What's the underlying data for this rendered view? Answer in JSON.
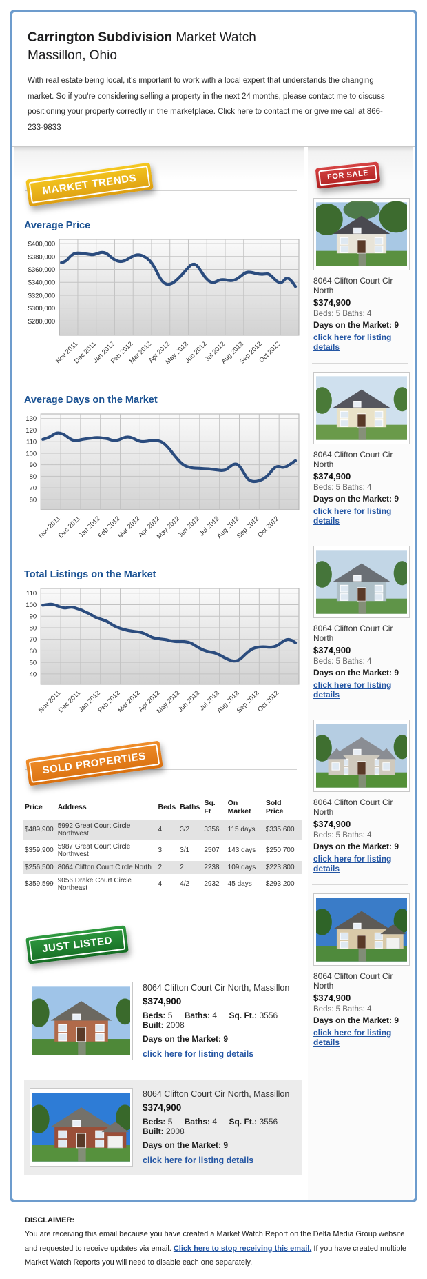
{
  "header": {
    "title_bold": "Carrington Subdivision",
    "title_rest": " Market Watch",
    "subtitle": "Massillon, Ohio",
    "intro": "With real estate being local, it's important to work with a local expert that understands the changing market. So if you're considering selling a property in the next 24 months, please contact me to discuss positioning your property correctly in the marketplace. Click here to contact me or give me call at 866-233-9833"
  },
  "badges": {
    "market_trends": "MARKET TRENDS",
    "for_sale": "FOR SALE",
    "sold_properties": "SOLD PROPERTIES",
    "just_listed": "JUST LISTED"
  },
  "colors": {
    "line": "#2b4c7e",
    "heading_blue": "#1b5293",
    "link_blue": "#2456a4",
    "border_blue": "#6d9ccd",
    "row_shade": "#e3e3e3"
  },
  "chart_data": [
    {
      "type": "line",
      "title": "Average Price",
      "xlabel": "",
      "ylabel": "",
      "legend": "none",
      "grid": true,
      "categories": [
        "Nov 2011",
        "Dec 2011",
        "Jan 2012",
        "Feb 2012",
        "Mar 2012",
        "Apr 2012",
        "May 2012",
        "Jun 2012",
        "Jul 2012",
        "Aug 2012",
        "Sep 2012",
        "Oct 2012"
      ],
      "yticks": [
        400000,
        380000,
        360000,
        340000,
        320000,
        300000,
        280000
      ],
      "ytick_labels": [
        "$400,000",
        "$380,000",
        "$360,000",
        "$340,000",
        "$320,000",
        "$300,000",
        "$280,000"
      ],
      "ylim": [
        258000,
        406500
      ],
      "values": [
        370500,
        372000,
        381000,
        385000,
        385500,
        384500,
        383500,
        382500,
        384500,
        387000,
        385000,
        379000,
        374000,
        372000,
        373000,
        377000,
        381000,
        383000,
        381500,
        377500,
        371000,
        359000,
        345000,
        337500,
        336500,
        340000,
        346000,
        353500,
        361500,
        368500,
        367500,
        357500,
        347000,
        340500,
        339500,
        343500,
        344500,
        343000,
        342500,
        345000,
        350500,
        355500,
        356000,
        354000,
        352500,
        352500,
        353500,
        347500,
        340500,
        339000,
        348000,
        343500,
        333500
      ]
    },
    {
      "type": "line",
      "title": "Average Days on the Market",
      "xlabel": "",
      "ylabel": "",
      "legend": "none",
      "grid": true,
      "categories": [
        "Nov 2011",
        "Dec 2011",
        "Jan 2012",
        "Feb 2012",
        "Mar 2012",
        "Apr 2012",
        "May 2012",
        "Jun 2012",
        "Jul 2012",
        "Aug 2012",
        "Sep 2012",
        "Oct 2012"
      ],
      "yticks": [
        130,
        120,
        110,
        100,
        90,
        80,
        70,
        60
      ],
      "ytick_labels": [
        "130",
        "120",
        "110",
        "100",
        "90",
        "80",
        "70",
        "60"
      ],
      "ylim": [
        51,
        134
      ],
      "values": [
        112,
        113,
        115,
        117.5,
        117.5,
        116,
        113,
        111,
        111,
        112,
        112.5,
        113,
        113.5,
        113.5,
        113,
        112.5,
        111,
        111,
        112.5,
        114,
        114,
        112.5,
        110.5,
        110,
        110.5,
        111,
        111,
        110.5,
        108,
        104,
        99,
        94.5,
        90.5,
        88.5,
        87.5,
        87,
        87,
        86.5,
        86.5,
        86,
        85.5,
        85,
        85.5,
        88.5,
        91,
        90,
        84,
        77.5,
        75.5,
        75.5,
        76.5,
        78.5,
        82,
        87,
        89,
        87.5,
        88.5,
        91,
        93.5
      ]
    },
    {
      "type": "line",
      "title": "Total Listings on the Market",
      "xlabel": "",
      "ylabel": "",
      "legend": "none",
      "grid": true,
      "categories": [
        "Nov 2011",
        "Dec 2011",
        "Jan 2012",
        "Feb 2012",
        "Mar 2012",
        "Apr 2012",
        "May 2012",
        "Jun 2012",
        "Jul 2012",
        "Aug 2012",
        "Sep 2012",
        "Oct 2012"
      ],
      "yticks": [
        110,
        100,
        90,
        80,
        70,
        60,
        50,
        40
      ],
      "ytick_labels": [
        "110",
        "100",
        "90",
        "80",
        "70",
        "60",
        "50",
        "40"
      ],
      "ylim": [
        31,
        114
      ],
      "values": [
        99.5,
        100,
        100.5,
        99.5,
        98,
        97,
        97.5,
        98,
        96.5,
        95.5,
        93.5,
        92,
        89.5,
        88,
        87,
        85.5,
        83,
        81,
        79.5,
        78.5,
        77.5,
        77,
        76.5,
        76,
        74.5,
        72.5,
        71,
        70.5,
        70,
        69.5,
        68.5,
        68,
        68,
        68,
        67.5,
        66,
        63.5,
        61.5,
        60,
        59,
        58.5,
        57,
        55,
        53,
        51.5,
        51,
        52.5,
        56,
        59.5,
        62,
        63,
        63.5,
        63.5,
        63,
        63.5,
        65,
        68,
        70,
        69.5,
        67
      ]
    }
  ],
  "sold_table": {
    "headers": [
      "Price",
      "Address",
      "Beds",
      "Baths",
      "Sq. Ft",
      "On Market",
      "Sold Price"
    ],
    "rows": [
      {
        "price": "$489,900",
        "address": "5992 Great Court Circle Northwest",
        "beds": "4",
        "baths": "3/2",
        "sqft": "3356",
        "on_market": "115 days",
        "sold_price": "$335,600"
      },
      {
        "price": "$359,900",
        "address": "5987 Great Court Circle Northwest",
        "beds": "3",
        "baths": "3/1",
        "sqft": "2507",
        "on_market": "143 days",
        "sold_price": "$250,700"
      },
      {
        "price": "$256,500",
        "address": "8064 Clifton Court Circle North",
        "beds": "2",
        "baths": "2",
        "sqft": "2238",
        "on_market": "109 days",
        "sold_price": "$223,800"
      },
      {
        "price": "$359,599",
        "address": "9056 Drake Court Circle Northeast",
        "beds": "4",
        "baths": "4/2",
        "sqft": "2932",
        "on_market": "45 days",
        "sold_price": "$293,200"
      }
    ]
  },
  "for_sale": {
    "items": [
      {
        "address": "8064 Clifton Court Cir North",
        "price": "$374,900",
        "beds_baths": "Beds: 5 Baths: 4",
        "days": "Days on the Market: 9",
        "link": "click here for listing details",
        "photo": {
          "sky": "#a8c8e4",
          "wall": "#e8e4d8",
          "roof": "#4a4a50",
          "grass": "#5a9040",
          "tree": "#3d6b2f",
          "style": "trees"
        }
      },
      {
        "address": "8064 Clifton Court Cir North",
        "price": "$374,900",
        "beds_baths": "Beds: 5 Baths: 4",
        "days": "Days on the Market: 9",
        "link": "click here for listing details",
        "photo": {
          "sky": "#cfe0ee",
          "wall": "#e9e2c8",
          "roof": "#55565e",
          "grass": "#6a9a4a",
          "tree": "#4a7a38",
          "style": "plain"
        }
      },
      {
        "address": "8064 Clifton Court Cir North",
        "price": "$374,900",
        "beds_baths": "Beds: 5 Baths: 4",
        "days": "Days on the Market: 9",
        "link": "click here for listing details",
        "photo": {
          "sky": "#c2d6e6",
          "wall": "#aebfc7",
          "roof": "#6a6f75",
          "grass": "#5f9448",
          "tree": "#45753a",
          "style": "plain"
        }
      },
      {
        "address": "8064 Clifton Court Cir North",
        "price": "$374,900",
        "beds_baths": "Beds: 5 Baths: 4",
        "days": "Days on the Market: 9",
        "link": "click here for listing details",
        "photo": {
          "sky": "#b5cde2",
          "wall": "#cfc9bd",
          "roof": "#8a8d93",
          "grass": "#549038",
          "tree": "#3f6f30",
          "style": "mansion"
        }
      },
      {
        "address": "8064 Clifton Court Cir North",
        "price": "$374,900",
        "beds_baths": "Beds: 5 Baths: 4",
        "days": "Days on the Market: 9",
        "link": "click here for listing details",
        "photo": {
          "sky": "#3a7cc8",
          "wall": "#d9c9a8",
          "roof": "#5d5a55",
          "grass": "#4f8a3c",
          "tree": "#2f6428",
          "style": "garage"
        }
      }
    ]
  },
  "just_listed": {
    "items": [
      {
        "address": "8064 Clifton Court Cir North, Massillon",
        "price": "$374,900",
        "specs": [
          {
            "label": "Beds:",
            "value": "5"
          },
          {
            "label": "Baths:",
            "value": "4"
          },
          {
            "label": "Sq. Ft.:",
            "value": "3556"
          },
          {
            "label": "Built:",
            "value": "2008"
          }
        ],
        "days": "Days on the Market: 9",
        "link": "click here for listing details",
        "photo": {
          "sky": "#9fc4e8",
          "wall": "#b06a4a",
          "roof": "#6b6860",
          "grass": "#4e8838",
          "tree": "#3a6a2c",
          "style": "plain"
        }
      },
      {
        "address": "8064 Clifton Court Cir North, Massillon",
        "price": "$374,900",
        "specs": [
          {
            "label": "Beds:",
            "value": "5"
          },
          {
            "label": "Baths:",
            "value": "4"
          },
          {
            "label": "Sq. Ft.:",
            "value": "3556"
          },
          {
            "label": "Built:",
            "value": "2008"
          }
        ],
        "days": "Days on the Market: 9",
        "link": "click here for listing details",
        "photo": {
          "sky": "#2e7cd6",
          "wall": "#9a4f38",
          "roof": "#74716a",
          "grass": "#56913d",
          "tree": "#38682a",
          "style": "garage"
        }
      }
    ]
  },
  "disclaimer": {
    "heading": "DISCLAIMER:",
    "text_before": "You are receiving this email because you have created a Market Watch Report on the Delta Media Group website and requested to receive updates via email. ",
    "link": "Click here to stop receiving this email.",
    "text_after": " If you have created multiple Market Watch Reports you will need to disable each one separately."
  }
}
